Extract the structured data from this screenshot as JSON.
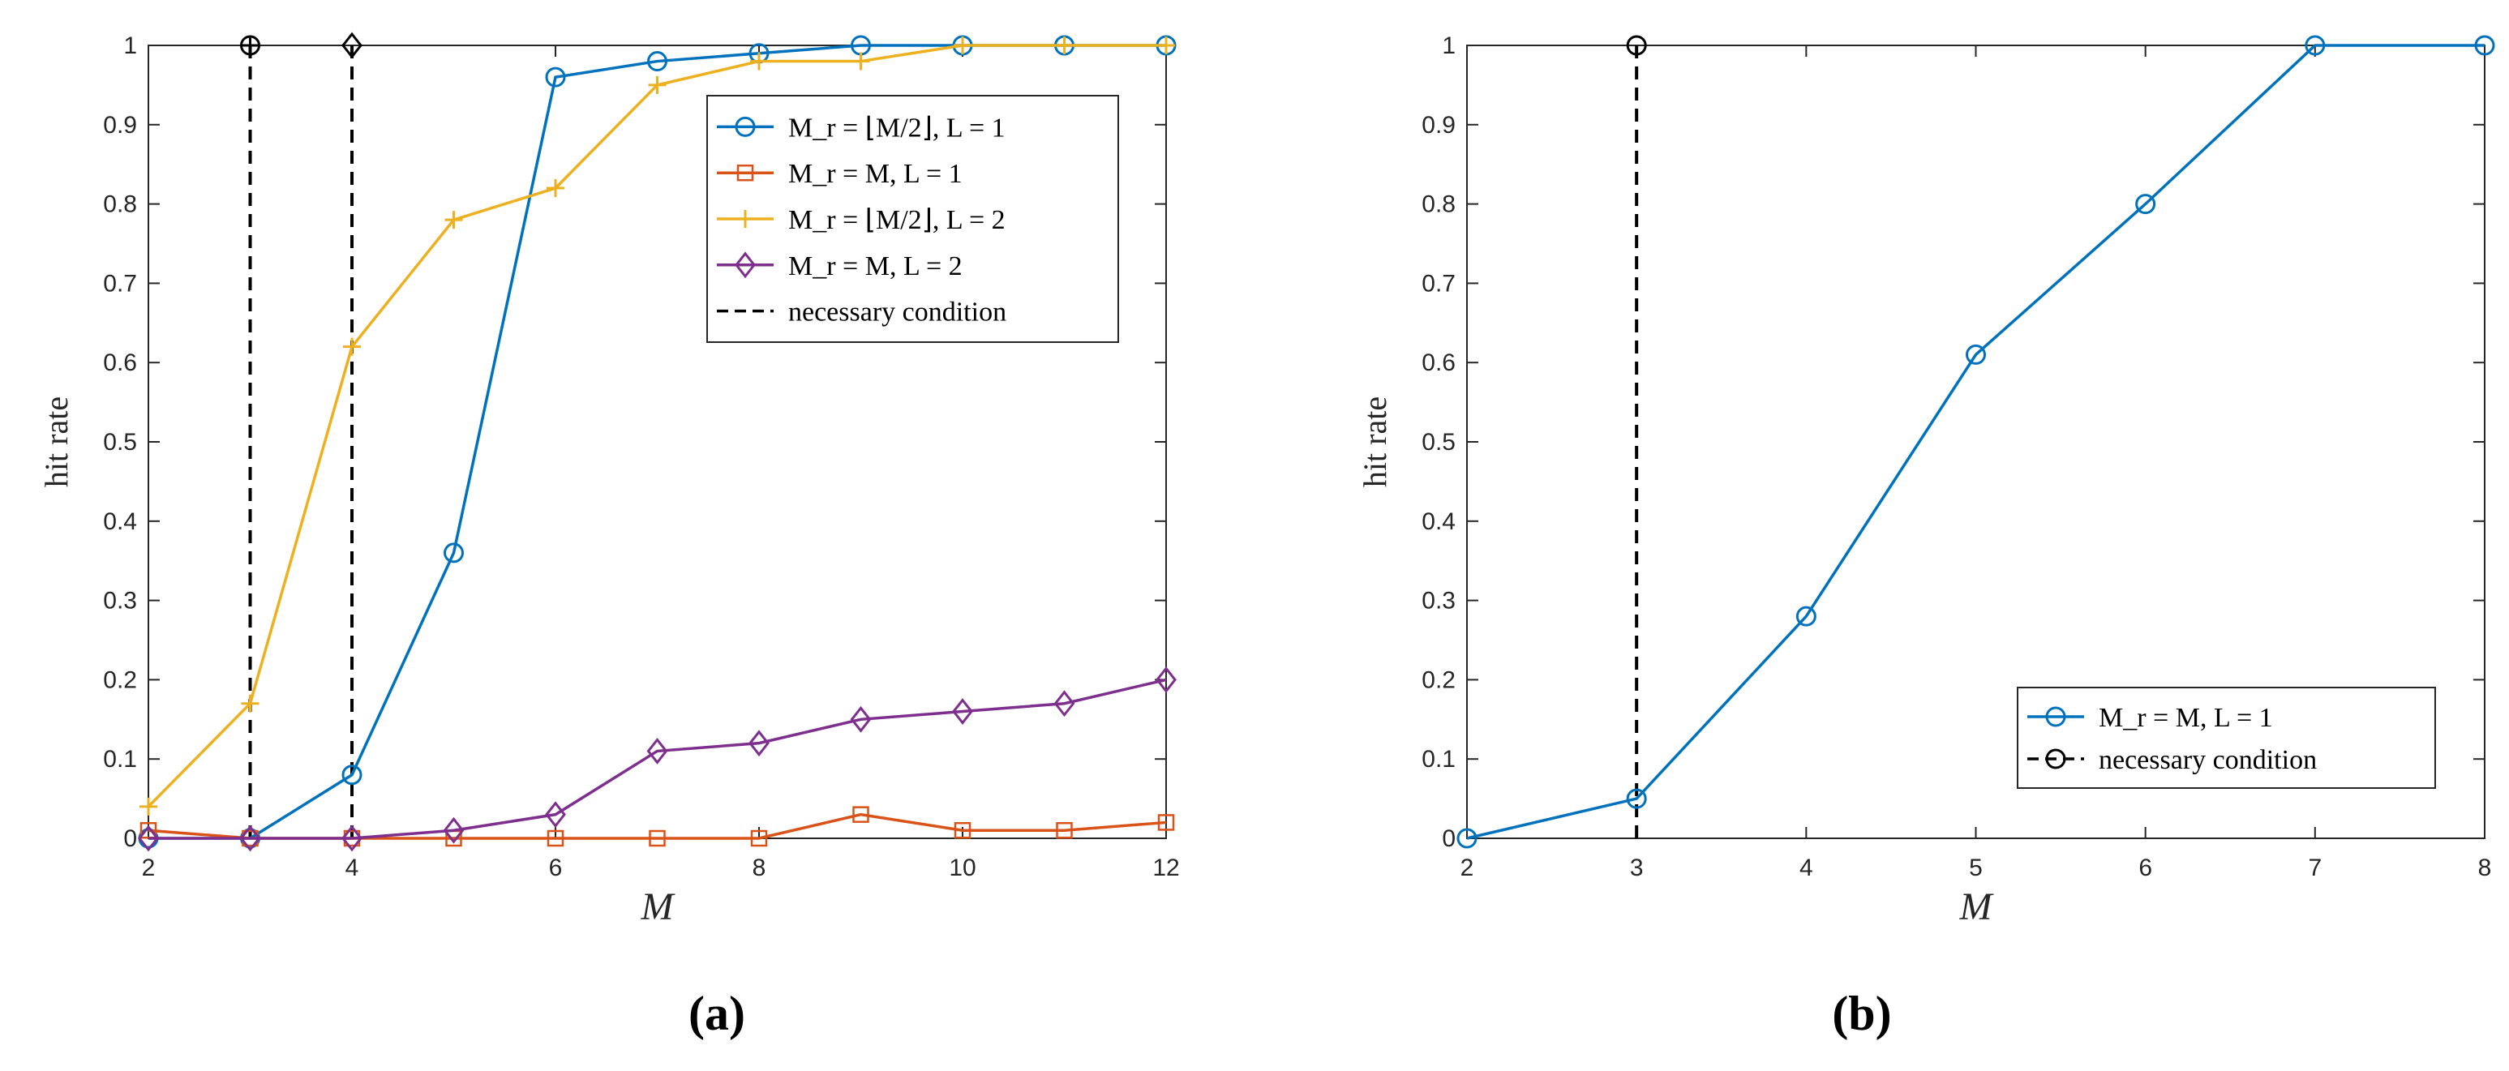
{
  "chart_data": [
    {
      "type": "line",
      "panel_label": "(a)",
      "xlabel": "M",
      "ylabel": "hit rate",
      "xlim": [
        2,
        12
      ],
      "ylim": [
        0,
        1
      ],
      "x_ticks": [
        "2",
        "4",
        "6",
        "8",
        "10",
        "12"
      ],
      "y_ticks": [
        "0",
        "0.1",
        "0.2",
        "0.3",
        "0.4",
        "0.5",
        "0.6",
        "0.7",
        "0.8",
        "0.9",
        "1"
      ],
      "x": [
        2,
        3,
        4,
        5,
        6,
        7,
        8,
        9,
        10,
        11,
        12
      ],
      "series": [
        {
          "name": "M_r = ⌊M/2⌋, L = 1",
          "color": "#0072BD",
          "marker": "circle",
          "values": [
            0,
            0,
            0.08,
            0.36,
            0.96,
            0.98,
            0.99,
            1.0,
            1.0,
            1.0,
            1.0
          ]
        },
        {
          "name": "M_r = M, L = 1",
          "color": "#D95319",
          "marker": "square",
          "values": [
            0.01,
            0,
            0,
            0,
            0,
            0,
            0,
            0.03,
            0.01,
            0.01,
            0.02
          ]
        },
        {
          "name": "M_r = ⌊M/2⌋, L = 2",
          "color": "#EDB120",
          "marker": "plus",
          "values": [
            0.04,
            0.17,
            0.62,
            0.78,
            0.82,
            0.95,
            0.98,
            0.98,
            1.0,
            1.0,
            1.0
          ]
        },
        {
          "name": "M_r = M, L = 2",
          "color": "#7E2F8E",
          "marker": "diamond",
          "values": [
            0,
            0,
            0,
            0.01,
            0.03,
            0.11,
            0.12,
            0.15,
            0.16,
            0.17,
            0.2
          ]
        }
      ],
      "necessary_conditions": [
        {
          "name": "necessary condition",
          "x": 3,
          "marker": "circle-plus",
          "color": "#000000"
        },
        {
          "name": "necessary condition",
          "x": 4,
          "marker": "diamond",
          "color": "#000000"
        }
      ],
      "legend": {
        "position": "top-right",
        "entries": [
          {
            "label": "M_r = ⌊M/2⌋, L = 1",
            "color": "#0072BD",
            "marker": "circle",
            "dashed": false
          },
          {
            "label": "M_r = M, L = 1",
            "color": "#D95319",
            "marker": "square",
            "dashed": false
          },
          {
            "label": "M_r = ⌊M/2⌋, L = 2",
            "color": "#EDB120",
            "marker": "plus",
            "dashed": false
          },
          {
            "label": "M_r = M, L = 2",
            "color": "#7E2F8E",
            "marker": "diamond",
            "dashed": false
          },
          {
            "label": "necessary condition",
            "color": "#000000",
            "marker": "none",
            "dashed": true
          }
        ]
      }
    },
    {
      "type": "line",
      "panel_label": "(b)",
      "xlabel": "M",
      "ylabel": "hit rate",
      "xlim": [
        2,
        8
      ],
      "ylim": [
        0,
        1
      ],
      "x_ticks": [
        "2",
        "3",
        "4",
        "5",
        "6",
        "7",
        "8"
      ],
      "y_ticks": [
        "0",
        "0.1",
        "0.2",
        "0.3",
        "0.4",
        "0.5",
        "0.6",
        "0.7",
        "0.8",
        "0.9",
        "1"
      ],
      "x": [
        2,
        3,
        4,
        5,
        6,
        7,
        8
      ],
      "series": [
        {
          "name": "M_r = M, L = 1",
          "color": "#0072BD",
          "marker": "circle",
          "values": [
            0,
            0.05,
            0.28,
            0.61,
            0.8,
            1.0,
            1.0
          ]
        }
      ],
      "necessary_conditions": [
        {
          "name": "necessary condition",
          "x": 3,
          "marker": "circle",
          "color": "#000000"
        }
      ],
      "legend": {
        "position": "bottom-right",
        "entries": [
          {
            "label": "M_r = M, L = 1",
            "color": "#0072BD",
            "marker": "circle",
            "dashed": false
          },
          {
            "label": "necessary condition",
            "color": "#000000",
            "marker": "circle",
            "dashed": true
          }
        ]
      }
    }
  ]
}
